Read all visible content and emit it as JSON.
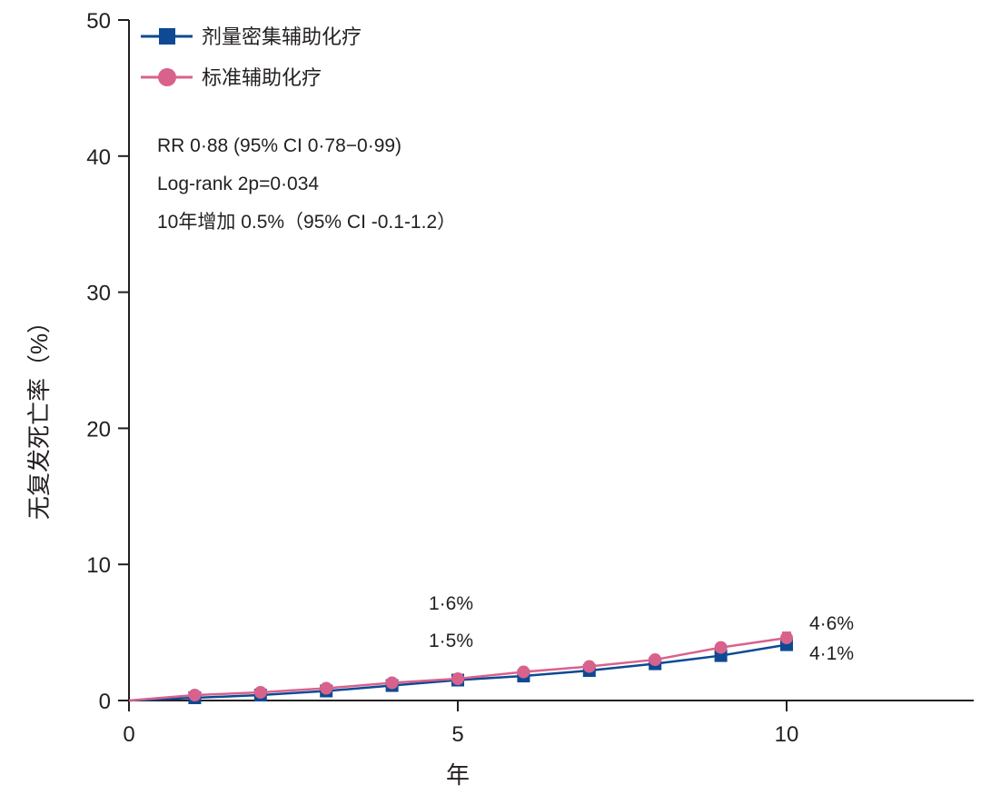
{
  "chart_data": {
    "type": "line",
    "xlabel": "年",
    "ylabel": "无复发死亡率（%）",
    "xlim": [
      0,
      12.8
    ],
    "ylim": [
      0,
      50
    ],
    "xticks": [
      0,
      5,
      10
    ],
    "yticks": [
      0,
      10,
      20,
      30,
      40,
      50
    ],
    "grid": false,
    "legend_position": "top-left",
    "x": [
      0,
      1,
      2,
      3,
      4,
      5,
      6,
      7,
      8,
      9,
      10
    ],
    "series": [
      {
        "name": "剂量密集辅助化疗",
        "marker": "square",
        "color": "#0d4a93",
        "values": [
          0,
          0.2,
          0.4,
          0.7,
          1.1,
          1.5,
          1.8,
          2.2,
          2.7,
          3.3,
          4.1
        ]
      },
      {
        "name": "标准辅助化疗",
        "marker": "circle",
        "color": "#d8628c",
        "values": [
          0,
          0.4,
          0.6,
          0.9,
          1.3,
          1.6,
          2.1,
          2.5,
          3.0,
          3.9,
          4.6
        ],
        "error_at_last": 0.4
      }
    ],
    "annotations": {
      "stats": [
        "RR 0·88 (95% CI 0·78−0·99)",
        "Log-rank 2p=0·034",
        "10年增加 0.5%（95% CI -0.1-1.2）"
      ],
      "at_5_upper": "1·6%",
      "at_5_lower": "1·5%",
      "at_10_upper": "4·6%",
      "at_10_lower": "4·1%"
    }
  }
}
